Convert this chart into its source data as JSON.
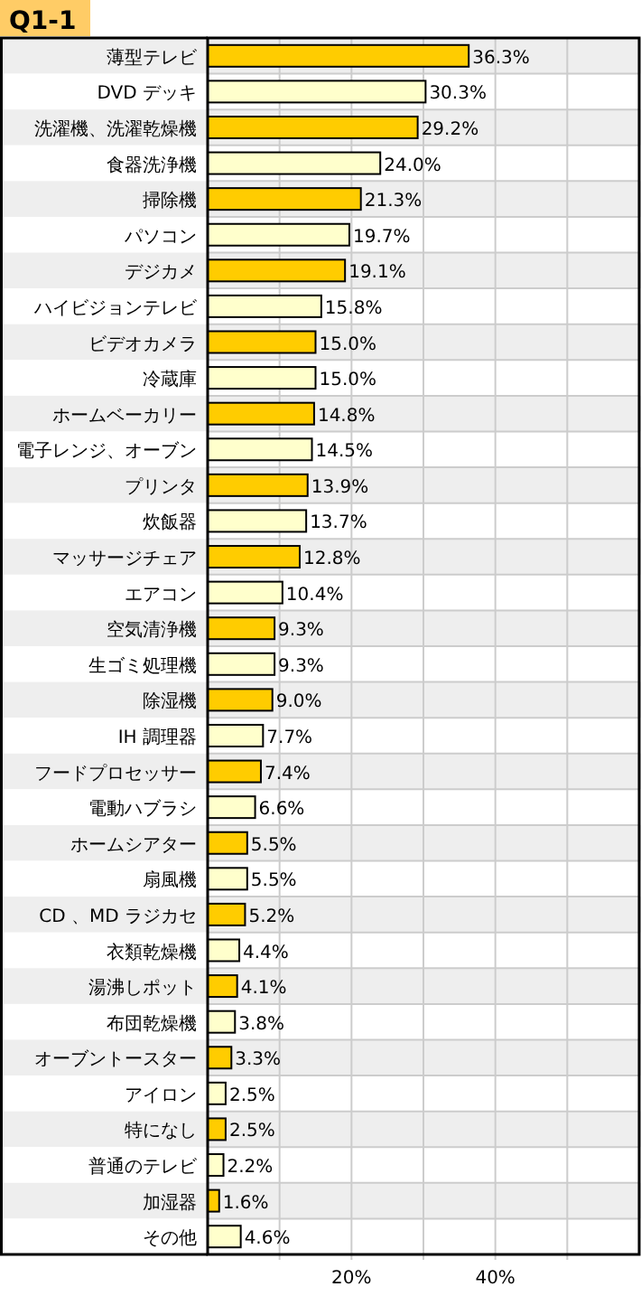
{
  "chart_data": {
    "type": "bar",
    "orientation": "horizontal",
    "title": "Q1-1",
    "categories": [
      "薄型テレビ",
      "DVD デッキ",
      "洗濯機、洗濯乾燥機",
      "食器洗浄機",
      "掃除機",
      "パソコン",
      "デジカメ",
      "ハイビジョンテレビ",
      "ビデオカメラ",
      "冷蔵庫",
      "ホームベーカリー",
      "電子レンジ、オーブン",
      "プリンタ",
      "炊飯器",
      "マッサージチェア",
      "エアコン",
      "空気清浄機",
      "生ゴミ処理機",
      "除湿機",
      "IH 調理器",
      "フードプロセッサー",
      "電動ハブラシ",
      "ホームシアター",
      "扇風機",
      "CD 、MD ラジカセ",
      "衣類乾燥機",
      "湯沸しポット",
      "布団乾燥機",
      "オーブントースター",
      "アイロン",
      "特になし",
      "普通のテレビ",
      "加湿器",
      "その他"
    ],
    "values": [
      36.3,
      30.3,
      29.2,
      24.0,
      21.3,
      19.7,
      19.1,
      15.8,
      15.0,
      15.0,
      14.8,
      14.5,
      13.9,
      13.7,
      12.8,
      10.4,
      9.3,
      9.3,
      9.0,
      7.7,
      7.4,
      6.6,
      5.5,
      5.5,
      5.2,
      4.4,
      4.1,
      3.8,
      3.3,
      2.5,
      2.5,
      2.2,
      1.6,
      4.6
    ],
    "value_labels": [
      "36.3%",
      "30.3%",
      "29.2%",
      "24.0%",
      "21.3%",
      "19.7%",
      "19.1%",
      "15.8%",
      "15.0%",
      "15.0%",
      "14.8%",
      "14.5%",
      "13.9%",
      "13.7%",
      "12.8%",
      "10.4%",
      "9.3%",
      "9.3%",
      "9.0%",
      "7.7%",
      "7.4%",
      "6.6%",
      "5.5%",
      "5.5%",
      "5.2%",
      "4.4%",
      "4.1%",
      "3.8%",
      "3.3%",
      "2.5%",
      "2.5%",
      "2.2%",
      "1.6%",
      "4.6%"
    ],
    "colors": [
      "#ffcc00",
      "#ffffcc",
      "#ffcc00",
      "#ffffcc",
      "#ffcc00",
      "#ffffcc",
      "#ffcc00",
      "#ffffcc",
      "#ffcc00",
      "#ffffcc",
      "#ffcc00",
      "#ffffcc",
      "#ffcc00",
      "#ffffcc",
      "#ffcc00",
      "#ffffcc",
      "#ffcc00",
      "#ffffcc",
      "#ffcc00",
      "#ffffcc",
      "#ffcc00",
      "#ffffcc",
      "#ffcc00",
      "#ffffcc",
      "#ffcc00",
      "#ffffcc",
      "#ffcc00",
      "#ffffcc",
      "#ffcc00",
      "#ffffcc",
      "#ffcc00",
      "#ffffcc",
      "#ffcc00",
      "#ffffcc"
    ],
    "xlim": [
      0,
      60
    ],
    "xticks": [
      {
        "value": 10,
        "label": null
      },
      {
        "value": 20,
        "label": "20%"
      },
      {
        "value": 30,
        "label": null
      },
      {
        "value": 40,
        "label": "40%"
      },
      {
        "value": 50,
        "label": null
      }
    ],
    "grid": "x"
  }
}
